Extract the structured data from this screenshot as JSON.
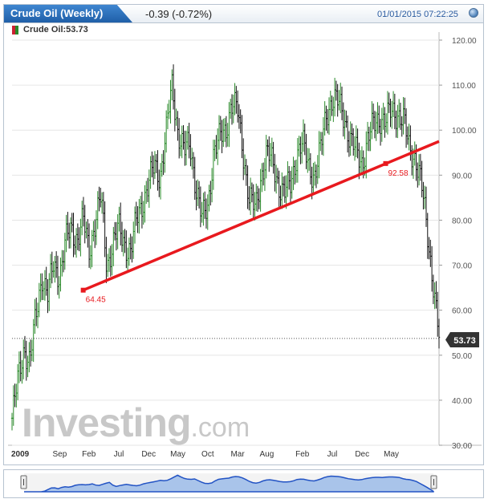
{
  "header": {
    "title": "Crude Oil (Weekly)",
    "change": "-0.39 (-0.72%)",
    "datetime": "01/01/2015 07:22:25"
  },
  "legend": {
    "label": "Crude Oil:53.73"
  },
  "logo": {
    "big": "Investing",
    "small": ".com"
  },
  "colors": {
    "accent": "#2c6fbd",
    "trendline": "#e8191e",
    "up": "#2a8a2a",
    "down": "#111111"
  },
  "chart_data": {
    "type": "line",
    "title": "Crude Oil (Weekly)",
    "xlabel": "",
    "ylabel": "",
    "ylim": [
      30,
      120
    ],
    "y_ticks": [
      "120.00",
      "110.00",
      "100.00",
      "90.00",
      "80.00",
      "70.00",
      "60.00",
      "50.00",
      "40.00",
      "30.00"
    ],
    "x_ticks": [
      {
        "label": "2009",
        "x": 2009.0
      },
      {
        "label": "Sep",
        "x": 2009.67
      },
      {
        "label": "Feb",
        "x": 2010.08
      },
      {
        "label": "Jul",
        "x": 2010.5
      },
      {
        "label": "Dec",
        "x": 2010.92
      },
      {
        "label": "May",
        "x": 2011.33
      },
      {
        "label": "Oct",
        "x": 2011.75
      },
      {
        "label": "Mar",
        "x": 2012.17
      },
      {
        "label": "Aug",
        "x": 2012.58
      },
      {
        "label": "Feb",
        "x": 2013.08
      },
      {
        "label": "Jul",
        "x": 2013.5
      },
      {
        "label": "Dec",
        "x": 2013.92
      },
      {
        "label": "May",
        "x": 2014.33
      }
    ],
    "xlim": [
      2009.0,
      2015.0
    ],
    "series": [
      {
        "name": "Crude Oil",
        "x": [
          2009.0,
          2009.08,
          2009.17,
          2009.25,
          2009.33,
          2009.42,
          2009.5,
          2009.58,
          2009.67,
          2009.75,
          2009.83,
          2009.92,
          2010.0,
          2010.08,
          2010.17,
          2010.25,
          2010.33,
          2010.42,
          2010.5,
          2010.58,
          2010.67,
          2010.75,
          2010.83,
          2010.92,
          2011.0,
          2011.08,
          2011.17,
          2011.25,
          2011.33,
          2011.42,
          2011.5,
          2011.58,
          2011.67,
          2011.75,
          2011.83,
          2011.92,
          2012.0,
          2012.08,
          2012.17,
          2012.25,
          2012.33,
          2012.42,
          2012.5,
          2012.58,
          2012.67,
          2012.75,
          2012.83,
          2012.92,
          2013.0,
          2013.08,
          2013.17,
          2013.25,
          2013.33,
          2013.42,
          2013.5,
          2013.58,
          2013.67,
          2013.75,
          2013.83,
          2013.92,
          2014.0,
          2014.08,
          2014.17,
          2014.25,
          2014.33,
          2014.42,
          2014.5,
          2014.58,
          2014.67,
          2014.75,
          2014.83,
          2014.92,
          2015.0
        ],
        "y": [
          36,
          44,
          52,
          48,
          58,
          68,
          63,
          70,
          68,
          75,
          78,
          76,
          80,
          73,
          80,
          85,
          70,
          75,
          78,
          75,
          73,
          80,
          84,
          88,
          92,
          90,
          100,
          110,
          100,
          95,
          97,
          88,
          80,
          83,
          95,
          98,
          100,
          106,
          104,
          95,
          85,
          82,
          90,
          95,
          92,
          88,
          86,
          88,
          95,
          97,
          92,
          90,
          95,
          104,
          107,
          106,
          103,
          98,
          95,
          93,
          98,
          101,
          103,
          102,
          104,
          104,
          102,
          96,
          94,
          88,
          78,
          66,
          53.73
        ]
      }
    ],
    "annotations": [
      {
        "type": "trendline",
        "x1": 2010.0,
        "y1": 64.45,
        "x2": 2015.0,
        "y2": 97.5
      },
      {
        "type": "label",
        "text": "64.45",
        "x": 2010.0,
        "y": 64.45
      },
      {
        "type": "label",
        "text": "92.58",
        "x": 2014.25,
        "y": 92.58
      }
    ],
    "last_price": "53.73",
    "grid": true
  }
}
